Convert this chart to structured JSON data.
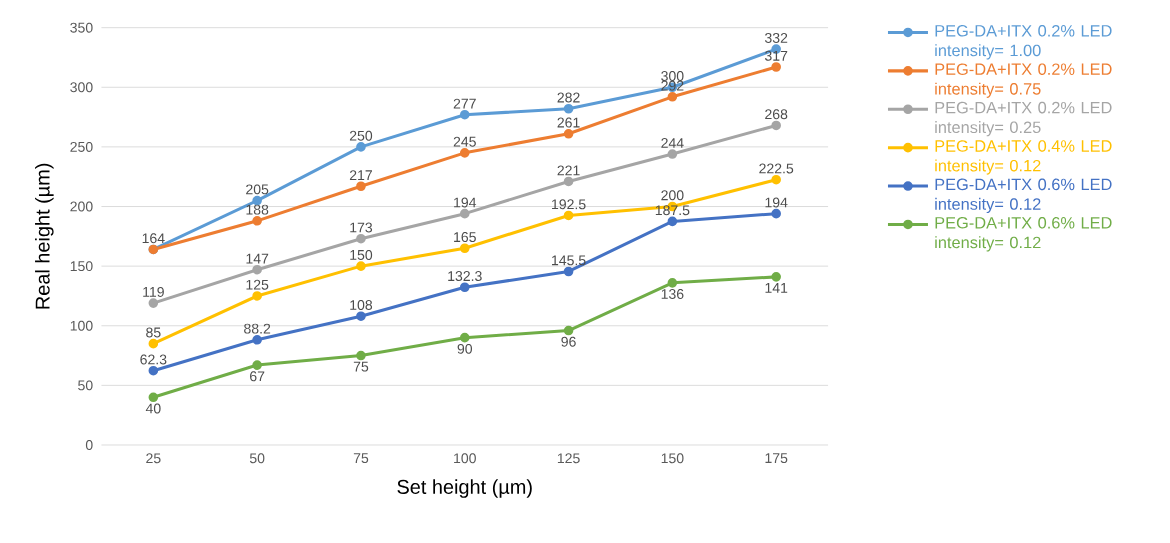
{
  "chart_data": {
    "type": "line",
    "xlabel": "Set height (µm)",
    "ylabel": "Real height (µm)",
    "categories": [
      "25",
      "50",
      "75",
      "100",
      "125",
      "150",
      "175"
    ],
    "ylim": [
      0,
      350
    ],
    "yticks": [
      0,
      50,
      100,
      150,
      200,
      250,
      300,
      350
    ],
    "grid": "y",
    "legend": "right",
    "marker": "circle",
    "line_style": "solid",
    "data_labels": true,
    "series": [
      {
        "name": "PEG-DA+ITX 0.2% LED intensity= 1.00",
        "color": "#5b9bd5",
        "values": [
          164,
          205,
          250,
          277,
          282,
          300,
          332
        ]
      },
      {
        "name": "PEG-DA+ITX 0.2% LED intensity= 0.75",
        "color": "#ed7d31",
        "values": [
          164,
          188,
          217,
          245,
          261,
          292,
          317
        ],
        "value_labels": [
          null,
          "188",
          "217",
          "245",
          "261",
          "292",
          "317"
        ]
      },
      {
        "name": "PEG-DA+ITX 0.2% LED intensity= 0.25",
        "color": "#a5a5a5",
        "values": [
          119,
          147,
          173,
          194,
          221,
          244,
          268
        ]
      },
      {
        "name": "PEG-DA+ITX 0.4% LED intensity= 0.12",
        "color": "#ffc000",
        "values": [
          85,
          125,
          150,
          165,
          192.5,
          200,
          222.5
        ]
      },
      {
        "name": "PEG-DA+ITX 0.6% LED intensity= 0.12",
        "color": "#4472c4",
        "values": [
          62.3,
          88.2,
          108,
          132.3,
          145.5,
          187.5,
          194
        ]
      },
      {
        "name": "PEG-DA+ITX 0.6% LED intensity= 0.12",
        "color": "#70ad47",
        "values": [
          40,
          67,
          75,
          90,
          96,
          136,
          141
        ]
      }
    ]
  }
}
